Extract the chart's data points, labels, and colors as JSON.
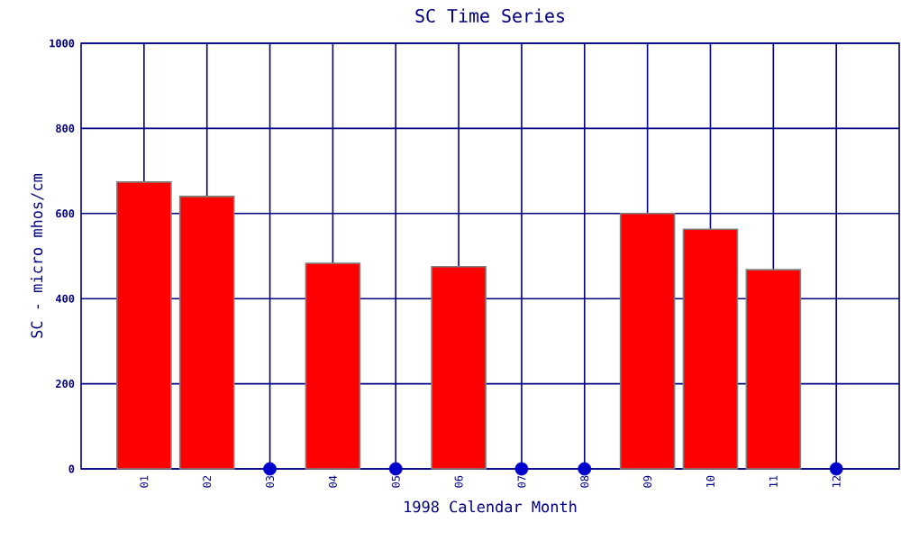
{
  "chart_data": {
    "type": "bar",
    "title": "SC Time Series",
    "xlabel": "1998 Calendar Month",
    "ylabel": "SC - micro mhos/cm",
    "categories": [
      "01",
      "02",
      "03",
      "04",
      "05",
      "06",
      "07",
      "08",
      "09",
      "10",
      "11",
      "12"
    ],
    "series": [
      {
        "color": "#ff0000",
        "values": [
          674,
          640,
          null,
          483,
          null,
          475,
          null,
          null,
          600,
          563,
          468,
          null
        ]
      },
      {
        "type": "scatter",
        "color": "#0000cc",
        "marker": "circle",
        "values": [
          null,
          null,
          0,
          null,
          0,
          null,
          0,
          0,
          null,
          null,
          null,
          0
        ]
      }
    ],
    "ylim": [
      0,
      1000
    ],
    "yticks": [
      0,
      200,
      400,
      600,
      800,
      1000
    ],
    "grid": true
  }
}
